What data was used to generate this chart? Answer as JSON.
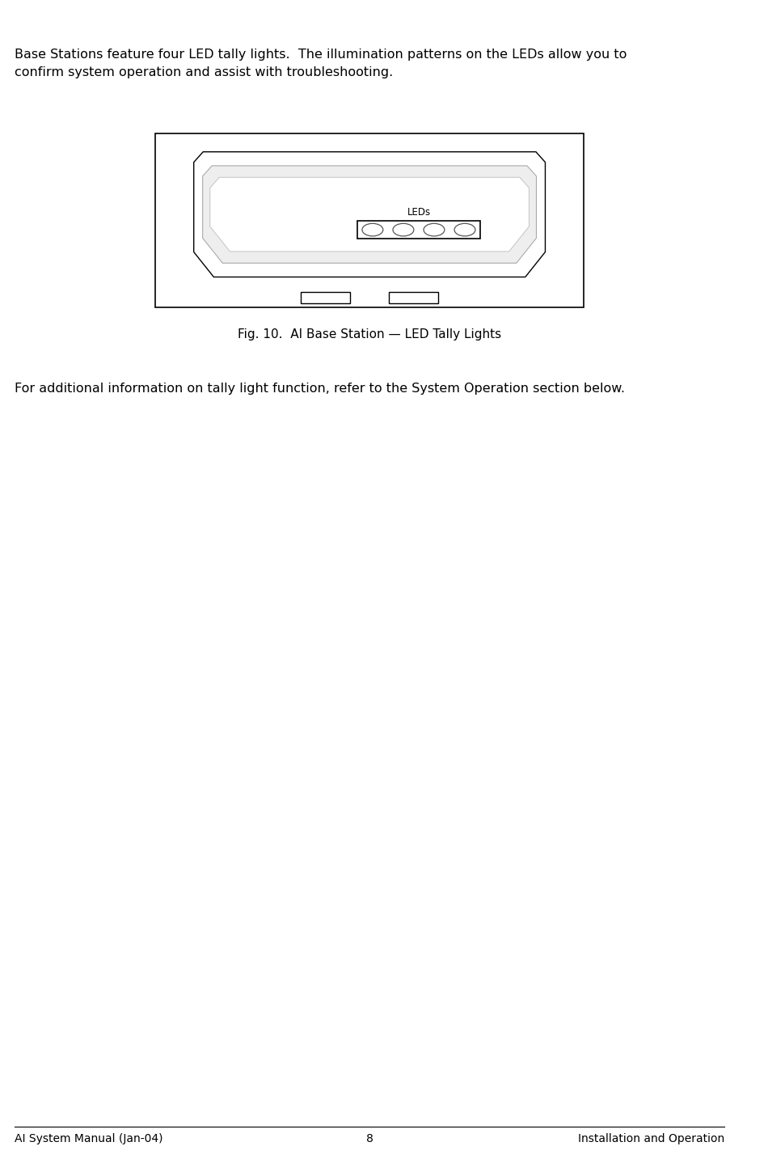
{
  "background_color": "#ffffff",
  "page_width": 9.5,
  "page_height": 14.33,
  "body_text_1": "Base Stations feature four LED tally lights.  The illumination patterns on the LEDs allow you to\nconfirm system operation and assist with troubleshooting.",
  "body_text_2": "For additional information on tally light function, refer to the System Operation section below.",
  "fig_caption": "Fig. 10.  AI Base Station — LED Tally Lights",
  "footer_left": "AI System Manual (Jan-04)",
  "footer_center": "8",
  "footer_right": "Installation and Operation",
  "body_font_size": 11.5,
  "footer_font_size": 10,
  "caption_font_size": 11,
  "led_label": "LEDs",
  "outline_color": "#000000",
  "inner_color": "#cccccc",
  "bg_device_color": "#f5f5f5"
}
